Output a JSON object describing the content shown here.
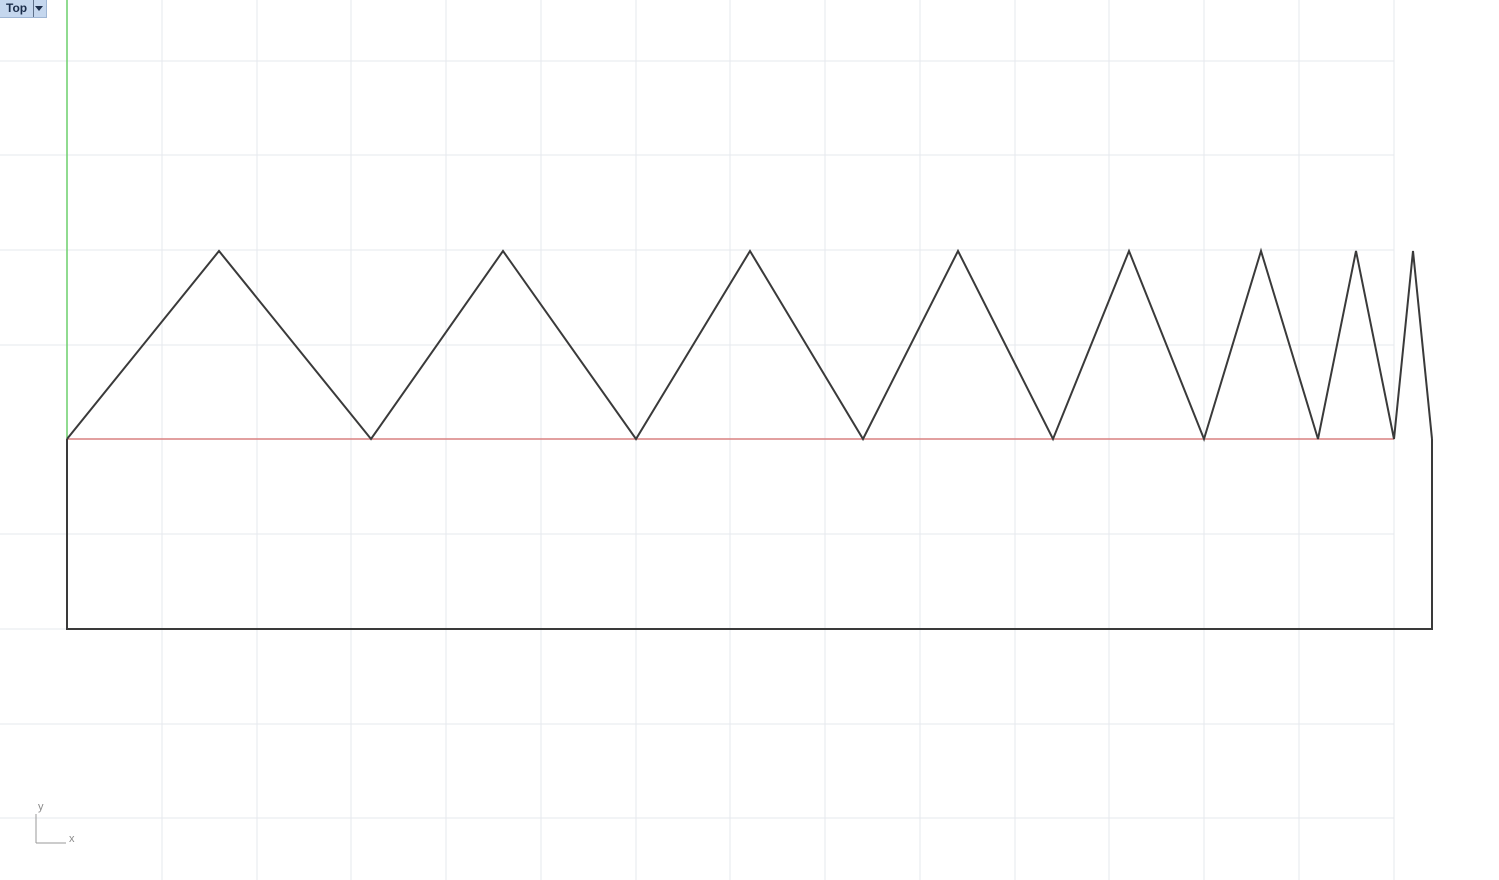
{
  "viewport": {
    "name": "Top",
    "dropdown_icon": "chevron-down-icon"
  },
  "axis_widget": {
    "y_label": "y",
    "x_label": "x"
  },
  "colors": {
    "background": "#ffffff",
    "grid": "#e6e9ee",
    "world_y_axis": "#6ccf6c",
    "world_x_axis": "#d98080",
    "geometry": "#3a3a3a",
    "viewport_tab": "#c5d7ee"
  }
}
